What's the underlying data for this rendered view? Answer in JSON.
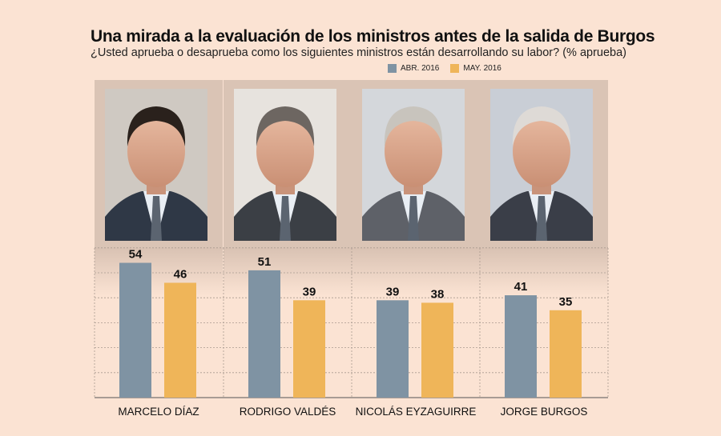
{
  "title": "Una mirada a la evaluación de los ministros antes de la salida de Burgos",
  "subtitle": "¿Usted aprueba o desaprueba como los siguientes ministros están desarrollando su labor? (% aprueba)",
  "colors": {
    "series1": "#7f93a3",
    "series2": "#efb559"
  },
  "chart_data": {
    "type": "bar",
    "title": "Una mirada a la evaluación de los ministros antes de la salida de Burgos",
    "subtitle": "¿Usted aprueba o desaprueba como los siguientes ministros están desarrollando su labor? (% aprueba)",
    "categories": [
      "MARCELO DÍAZ",
      "RODRIGO VALDÉS",
      "NICOLÁS EYZAGUIRRE",
      "JORGE BURGOS"
    ],
    "series": [
      {
        "name": "ABR. 2016",
        "values": [
          54,
          51,
          39,
          41
        ]
      },
      {
        "name": "MAY. 2016",
        "values": [
          46,
          39,
          38,
          35
        ]
      }
    ],
    "ylim": [
      0,
      60
    ],
    "grid": true,
    "legend_position": "top-right"
  }
}
